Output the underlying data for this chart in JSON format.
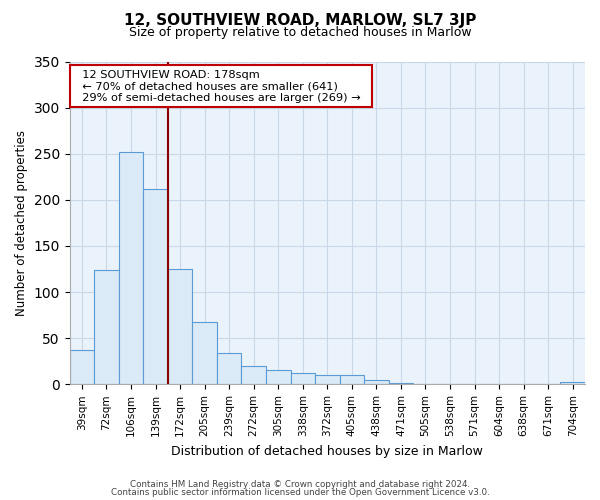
{
  "title": "12, SOUTHVIEW ROAD, MARLOW, SL7 3JP",
  "subtitle": "Size of property relative to detached houses in Marlow",
  "xlabel": "Distribution of detached houses by size in Marlow",
  "ylabel": "Number of detached properties",
  "footnote1": "Contains HM Land Registry data © Crown copyright and database right 2024.",
  "footnote2": "Contains public sector information licensed under the Open Government Licence v3.0.",
  "annotation_title": "12 SOUTHVIEW ROAD: 178sqm",
  "annotation_line1": "← 70% of detached houses are smaller (641)",
  "annotation_line2": "29% of semi-detached houses are larger (269) →",
  "bar_labels": [
    "39sqm",
    "72sqm",
    "106sqm",
    "139sqm",
    "172sqm",
    "205sqm",
    "239sqm",
    "272sqm",
    "305sqm",
    "338sqm",
    "372sqm",
    "405sqm",
    "438sqm",
    "471sqm",
    "505sqm",
    "538sqm",
    "571sqm",
    "604sqm",
    "638sqm",
    "671sqm",
    "704sqm"
  ],
  "bar_values": [
    37,
    124,
    252,
    212,
    125,
    68,
    34,
    20,
    16,
    12,
    10,
    10,
    5,
    1,
    0,
    0,
    0,
    0,
    0,
    0,
    3
  ],
  "vline_x": 3.5,
  "bar_color_normal": "#daeaf6",
  "bar_edge_color": "#5b9bd5",
  "vline_color": "#8b0000",
  "annotation_box_edge": "#c00000",
  "ylim": [
    0,
    350
  ],
  "bg_color": "#ffffff",
  "plot_bg_color": "#eaf3fb",
  "grid_color": "#c8d8e8",
  "title_fontsize": 11,
  "subtitle_fontsize": 9
}
